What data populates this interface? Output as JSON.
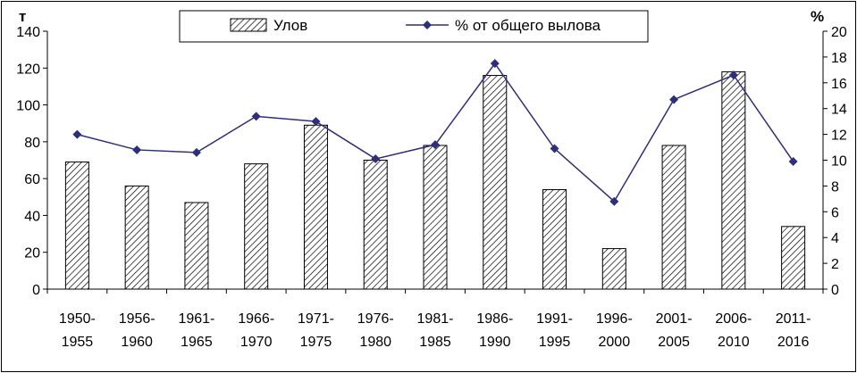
{
  "chart_data": {
    "type": "bar+line",
    "categories": [
      [
        "1950-",
        "1955"
      ],
      [
        "1956-",
        "1960"
      ],
      [
        "1961-",
        "1965"
      ],
      [
        "1966-",
        "1970"
      ],
      [
        "1971-",
        "1975"
      ],
      [
        "1976-",
        "1980"
      ],
      [
        "1981-",
        "1985"
      ],
      [
        "1986-",
        "1990"
      ],
      [
        "1991-",
        "1995"
      ],
      [
        "1996-",
        "2000"
      ],
      [
        "2001-",
        "2005"
      ],
      [
        "2006-",
        "2010"
      ],
      [
        "2011-",
        "2016"
      ]
    ],
    "series": [
      {
        "name": "Улов",
        "type": "bar",
        "axis": "left",
        "values": [
          69,
          56,
          47,
          68,
          89,
          70,
          78,
          116,
          54,
          22,
          78,
          118,
          34
        ]
      },
      {
        "name": "% от общего вылова",
        "type": "line",
        "axis": "right",
        "values": [
          12.0,
          10.8,
          10.6,
          13.4,
          13.0,
          10.1,
          11.2,
          17.5,
          10.9,
          6.8,
          14.7,
          16.6,
          9.9
        ]
      }
    ],
    "left_axis": {
      "unit": "т",
      "ylim": [
        0,
        140
      ],
      "ticks": [
        0,
        20,
        40,
        60,
        80,
        100,
        120,
        140
      ]
    },
    "right_axis": {
      "unit": "%",
      "ylim": [
        0,
        20
      ],
      "ticks": [
        0,
        2,
        4,
        6,
        8,
        10,
        12,
        14,
        16,
        18,
        20
      ]
    },
    "legend_position": "top-center",
    "grid": false,
    "colors": {
      "line": "#2e2e7a",
      "marker": "#2e2e7a",
      "bar_hatch": "#000000",
      "bar_fill": "#ffffff"
    }
  }
}
